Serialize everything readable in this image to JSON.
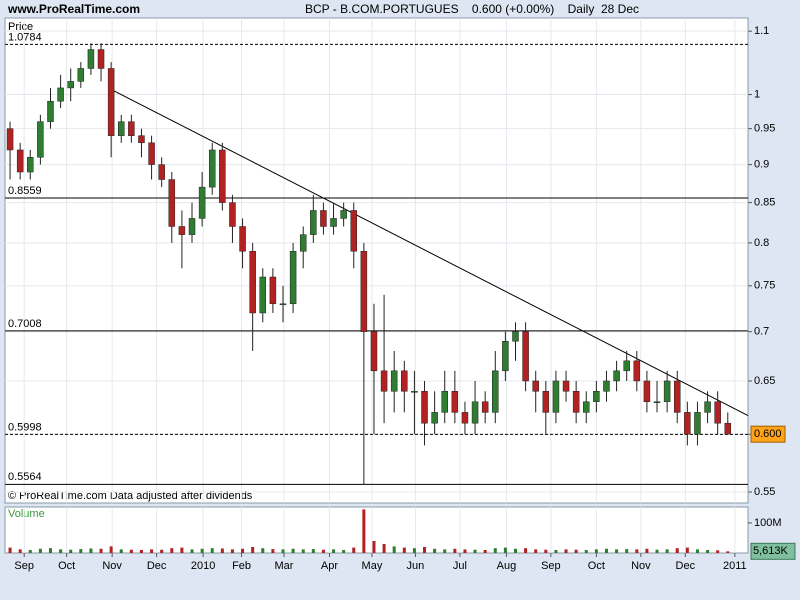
{
  "chart_data": [
    {
      "type": "candlestick",
      "site": "www.ProRealTime.com",
      "title": "BCP - B.COM.PORTUGUES    0.600 (+0.00%)    Daily  28 Dec",
      "axis_label": "Price",
      "footnote": "© ProRealTime.com Data adjusted after dividends",
      "log_y": true,
      "grid": true,
      "up_color": "#2e7d32",
      "down_color": "#b22222",
      "x": [
        0,
        1,
        2,
        3,
        4,
        5,
        6,
        7,
        8,
        9,
        10,
        11,
        12,
        13,
        14,
        15,
        16,
        17,
        18,
        19,
        20,
        21,
        22,
        23,
        24,
        25,
        26,
        27,
        28,
        29,
        30,
        31,
        32,
        33,
        34,
        35,
        36,
        37,
        38,
        39,
        40,
        41,
        42,
        43,
        44,
        45,
        46,
        47,
        48,
        49,
        50,
        51,
        52,
        53,
        54,
        55,
        56,
        57,
        58,
        59,
        60,
        61,
        62,
        63,
        64,
        65,
        66,
        67,
        68,
        69,
        70,
        71
      ],
      "open": [
        0.95,
        0.92,
        0.89,
        0.91,
        0.96,
        0.99,
        1.01,
        1.02,
        1.04,
        1.07,
        1.04,
        0.94,
        0.96,
        0.94,
        0.93,
        0.9,
        0.88,
        0.82,
        0.81,
        0.83,
        0.87,
        0.92,
        0.85,
        0.82,
        0.79,
        0.72,
        0.76,
        0.73,
        0.73,
        0.79,
        0.81,
        0.84,
        0.82,
        0.83,
        0.84,
        0.79,
        0.7,
        0.66,
        0.64,
        0.66,
        0.64,
        0.64,
        0.61,
        0.62,
        0.64,
        0.62,
        0.61,
        0.63,
        0.62,
        0.66,
        0.69,
        0.7,
        0.65,
        0.64,
        0.62,
        0.65,
        0.64,
        0.62,
        0.63,
        0.64,
        0.65,
        0.66,
        0.67,
        0.65,
        0.63,
        0.63,
        0.65,
        0.62,
        0.6,
        0.62,
        0.63,
        0.61
      ],
      "high": [
        0.96,
        0.93,
        0.92,
        0.97,
        1.01,
        1.03,
        1.04,
        1.05,
        1.08,
        1.08,
        1.05,
        0.97,
        0.97,
        0.95,
        0.94,
        0.91,
        0.89,
        0.84,
        0.85,
        0.89,
        0.93,
        0.93,
        0.86,
        0.83,
        0.8,
        0.77,
        0.77,
        0.75,
        0.8,
        0.82,
        0.86,
        0.85,
        0.85,
        0.85,
        0.85,
        0.8,
        0.73,
        0.74,
        0.68,
        0.67,
        0.66,
        0.65,
        0.64,
        0.66,
        0.66,
        0.63,
        0.65,
        0.64,
        0.68,
        0.7,
        0.71,
        0.71,
        0.66,
        0.65,
        0.66,
        0.66,
        0.65,
        0.64,
        0.65,
        0.66,
        0.67,
        0.68,
        0.68,
        0.66,
        0.65,
        0.66,
        0.66,
        0.63,
        0.63,
        0.64,
        0.64,
        0.62
      ],
      "low": [
        0.88,
        0.88,
        0.88,
        0.9,
        0.95,
        0.98,
        0.99,
        1.01,
        1.03,
        1.02,
        0.91,
        0.93,
        0.93,
        0.91,
        0.88,
        0.87,
        0.8,
        0.77,
        0.8,
        0.82,
        0.86,
        0.84,
        0.8,
        0.77,
        0.68,
        0.71,
        0.72,
        0.71,
        0.72,
        0.77,
        0.8,
        0.81,
        0.81,
        0.82,
        0.77,
        0.5564,
        0.6,
        0.61,
        0.62,
        0.62,
        0.6,
        0.59,
        0.6,
        0.61,
        0.61,
        0.6,
        0.6,
        0.61,
        0.61,
        0.65,
        0.67,
        0.64,
        0.62,
        0.6,
        0.61,
        0.63,
        0.61,
        0.61,
        0.62,
        0.63,
        0.64,
        0.65,
        0.64,
        0.62,
        0.62,
        0.62,
        0.61,
        0.59,
        0.59,
        0.61,
        0.6,
        0.6
      ],
      "close": [
        0.92,
        0.89,
        0.91,
        0.96,
        0.99,
        1.01,
        1.02,
        1.04,
        1.07,
        1.04,
        0.94,
        0.96,
        0.94,
        0.93,
        0.9,
        0.88,
        0.82,
        0.81,
        0.83,
        0.87,
        0.92,
        0.85,
        0.82,
        0.79,
        0.72,
        0.76,
        0.73,
        0.73,
        0.79,
        0.81,
        0.84,
        0.82,
        0.83,
        0.84,
        0.79,
        0.7,
        0.66,
        0.64,
        0.66,
        0.64,
        0.64,
        0.61,
        0.62,
        0.64,
        0.62,
        0.61,
        0.63,
        0.62,
        0.66,
        0.69,
        0.7,
        0.65,
        0.64,
        0.62,
        0.65,
        0.64,
        0.62,
        0.63,
        0.64,
        0.65,
        0.66,
        0.67,
        0.65,
        0.63,
        0.63,
        0.65,
        0.62,
        0.6,
        0.62,
        0.63,
        0.61,
        0.6
      ],
      "last_price": {
        "value": 0.6,
        "label": "0.600"
      },
      "levels": [
        {
          "value": 1.0784,
          "style": "dashed"
        },
        {
          "value": 0.8559,
          "style": "solid"
        },
        {
          "value": 0.7008,
          "style": "solid"
        },
        {
          "value": 0.5998,
          "style": "dashed"
        },
        {
          "value": 0.5564,
          "style": "solid"
        }
      ],
      "trendline": {
        "x": [
          10.1,
          73
        ],
        "y": [
          1.007,
          0.617
        ]
      },
      "xlim": [
        -0.5,
        73
      ],
      "ylim": [
        0.541,
        1.122
      ],
      "yticks": [
        1.1,
        1,
        0.95,
        0.9,
        0.85,
        0.8,
        0.75,
        0.7,
        0.65,
        0.6,
        0.55
      ],
      "xticks": [
        {
          "value": 1.4,
          "label": "Sep"
        },
        {
          "value": 5.6,
          "label": "Oct"
        },
        {
          "value": 10.1,
          "label": "Nov"
        },
        {
          "value": 14.5,
          "label": "Dec"
        },
        {
          "value": 19.1,
          "label": "2010"
        },
        {
          "value": 22.9,
          "label": "Feb"
        },
        {
          "value": 27.1,
          "label": "Mar"
        },
        {
          "value": 31.6,
          "label": "Apr"
        },
        {
          "value": 35.8,
          "label": "May"
        },
        {
          "value": 40.1,
          "label": "Jun"
        },
        {
          "value": 44.5,
          "label": "Jul"
        },
        {
          "value": 49.1,
          "label": "Aug"
        },
        {
          "value": 53.5,
          "label": "Sep"
        },
        {
          "value": 58.0,
          "label": "Oct"
        },
        {
          "value": 62.4,
          "label": "Nov"
        },
        {
          "value": 66.8,
          "label": "Dec"
        },
        {
          "value": 71.7,
          "label": "2011"
        }
      ]
    },
    {
      "type": "bar",
      "axis_label": "Volume",
      "values": [
        18,
        12,
        10,
        14,
        16,
        12,
        11,
        13,
        15,
        14,
        22,
        12,
        11,
        10,
        12,
        11,
        16,
        18,
        12,
        14,
        16,
        15,
        12,
        14,
        20,
        16,
        13,
        12,
        14,
        12,
        13,
        11,
        12,
        10,
        18,
        145,
        40,
        30,
        22,
        18,
        16,
        20,
        14,
        12,
        14,
        12,
        11,
        10,
        16,
        18,
        14,
        16,
        12,
        11,
        10,
        12,
        11,
        10,
        12,
        14,
        12,
        13,
        12,
        14,
        11,
        12,
        16,
        18,
        12,
        10,
        9,
        5.613
      ],
      "last_volume": {
        "value": 5.613,
        "label": "5,613K"
      },
      "ylim": [
        0,
        153
      ],
      "yticks": [
        {
          "value": 100,
          "label": "100M"
        }
      ]
    }
  ]
}
